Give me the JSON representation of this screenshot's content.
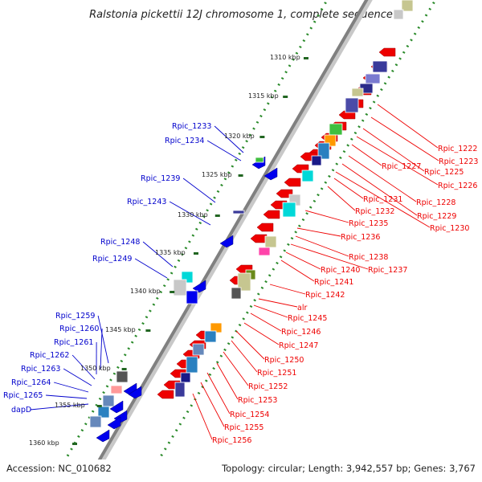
{
  "title": "Ralstonia pickettii 12J chromosome 1, complete sequence",
  "footer": {
    "accession": "Accession: NC_010682",
    "topology": "Topology: circular; Length: 3,942,557 bp; Genes: 3,767"
  },
  "colors": {
    "forward_label": "#0000cc",
    "reverse_label": "#ee0000",
    "forward_gene": "#0000ee",
    "reverse_gene": "#ee0000",
    "backbone": "#888888",
    "tick_dots": "#2a8a2a"
  },
  "ticks": [
    "1310 kbp",
    "1315 kbp",
    "1320 kbp",
    "1325 kbp",
    "1330 kbp",
    "1335 kbp",
    "1340 kbp",
    "1345 kbp",
    "1350 kbp",
    "1355 kbp",
    "1360 kbp"
  ],
  "forward_labels": [
    "Rpic_1233",
    "Rpic_1234",
    "Rpic_1239",
    "Rpic_1243",
    "Rpic_1248",
    "Rpic_1249",
    "Rpic_1259",
    "Rpic_1260",
    "Rpic_1261",
    "Rpic_1262",
    "Rpic_1263",
    "Rpic_1264",
    "Rpic_1265",
    "dapD"
  ],
  "reverse_labels": [
    "Rpic_1222",
    "Rpic_1223",
    "Rpic_1225",
    "Rpic_1226",
    "Rpic_1227",
    "Rpic_1228",
    "Rpic_1229",
    "Rpic_1230",
    "Rpic_1231",
    "Rpic_1232",
    "Rpic_1235",
    "Rpic_1236",
    "Rpic_1238",
    "Rpic_1237",
    "Rpic_1240",
    "Rpic_1241",
    "Rpic_1242",
    "alr",
    "Rpic_1245",
    "Rpic_1246",
    "Rpic_1247",
    "Rpic_1250",
    "Rpic_1251",
    "Rpic_1252",
    "Rpic_1253",
    "Rpic_1254",
    "Rpic_1255",
    "Rpic_1256"
  ]
}
